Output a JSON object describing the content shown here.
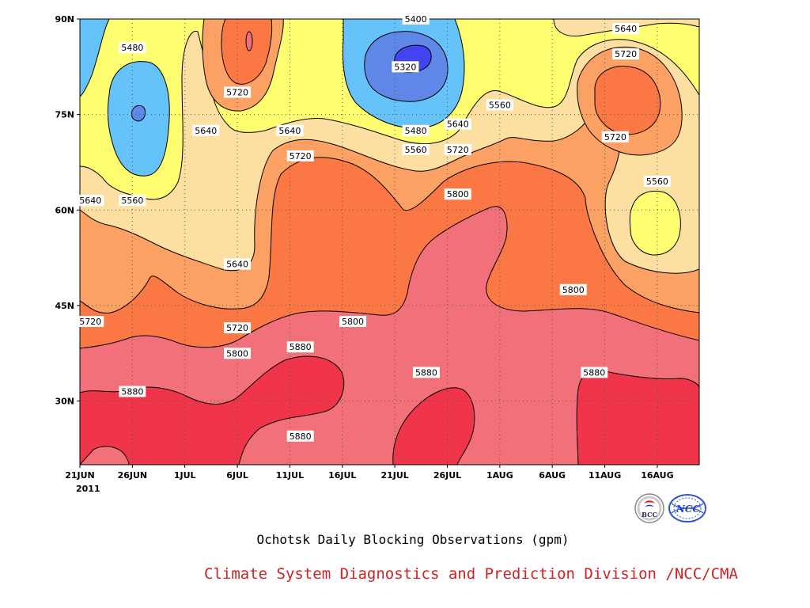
{
  "chart_data": {
    "type": "heatmap",
    "subtype": "filled-contour",
    "title": "Ochotsk Daily Blocking Observations (gpm)",
    "x_start": "2011-06-21",
    "x_end": "2011-08-19",
    "x_ticks": [
      "21JUN",
      "26JUN",
      "1JUL",
      "6JUL",
      "11JUL",
      "16JUL",
      "21JUL",
      "26JUL",
      "1AUG",
      "6AUG",
      "11AUG",
      "16AUG"
    ],
    "x_year_label": "2011",
    "y_ticks": [
      "30N",
      "45N",
      "60N",
      "75N",
      "90N"
    ],
    "ylim": [
      20,
      90
    ],
    "grid": "dotted",
    "levels": [
      5320,
      5400,
      5480,
      5560,
      5640,
      5720,
      5800,
      5880
    ],
    "colors": {
      "below_5320": "#4444ee",
      "5320_5400": "#5f87e8",
      "5400_5480": "#66c3fa",
      "5480_5560": "#fefe70",
      "5560_5640": "#fde0a1",
      "5640_5720": "#fca164",
      "5720_5800": "#fb7744",
      "5800_5880": "#f2707a",
      "above_5880": "#f0344a"
    },
    "contour_labels": [
      {
        "text": "5400",
        "date": "2011-07-23",
        "lat": 90
      },
      {
        "text": "5320",
        "date": "2011-07-22",
        "lat": 82.5
      },
      {
        "text": "5480",
        "date": "2011-06-26",
        "lat": 85.5
      },
      {
        "text": "5720",
        "date": "2011-07-06",
        "lat": 78.5
      },
      {
        "text": "5640",
        "date": "2011-08-12",
        "lat": 88.5
      },
      {
        "text": "5720",
        "date": "2011-08-12",
        "lat": 84.5
      },
      {
        "text": "5560",
        "date": "2011-07-31",
        "lat": 76.5
      },
      {
        "text": "5640",
        "date": "2011-07-03",
        "lat": 72.5
      },
      {
        "text": "5640",
        "date": "2011-07-11",
        "lat": 72.5
      },
      {
        "text": "5640",
        "date": "2011-07-27",
        "lat": 73.5
      },
      {
        "text": "5480",
        "date": "2011-07-23",
        "lat": 72.5
      },
      {
        "text": "5720",
        "date": "2011-08-11",
        "lat": 71.5
      },
      {
        "text": "5560",
        "date": "2011-07-23",
        "lat": 69.5
      },
      {
        "text": "5720",
        "date": "2011-07-12",
        "lat": 68.5
      },
      {
        "text": "5720",
        "date": "2011-07-27",
        "lat": 69.5
      },
      {
        "text": "5560",
        "date": "2011-08-15",
        "lat": 64.5
      },
      {
        "text": "5800",
        "date": "2011-07-27",
        "lat": 62.5
      },
      {
        "text": "5640",
        "date": "2011-06-22",
        "lat": 61.5
      },
      {
        "text": "5560",
        "date": "2011-06-26",
        "lat": 61.5
      },
      {
        "text": "5640",
        "date": "2011-07-06",
        "lat": 51.5
      },
      {
        "text": "5800",
        "date": "2011-08-07",
        "lat": 47.5
      },
      {
        "text": "5720",
        "date": "2011-06-22",
        "lat": 42.5
      },
      {
        "text": "5720",
        "date": "2011-07-06",
        "lat": 41.5
      },
      {
        "text": "5800",
        "date": "2011-07-17",
        "lat": 42.5
      },
      {
        "text": "5800",
        "date": "2011-07-06",
        "lat": 37.5
      },
      {
        "text": "5880",
        "date": "2011-07-12",
        "lat": 38.5
      },
      {
        "text": "5880",
        "date": "2011-07-24",
        "lat": 34.5
      },
      {
        "text": "5880",
        "date": "2011-08-09",
        "lat": 34.5
      },
      {
        "text": "5880",
        "date": "2011-06-26",
        "lat": 31.5
      },
      {
        "text": "5880",
        "date": "2011-07-12",
        "lat": 24.5
      }
    ]
  },
  "credit": "Climate System Diagnostics and Prediction Division /NCC/CMA",
  "logos": {
    "left": "BCC",
    "right": "NCC"
  }
}
